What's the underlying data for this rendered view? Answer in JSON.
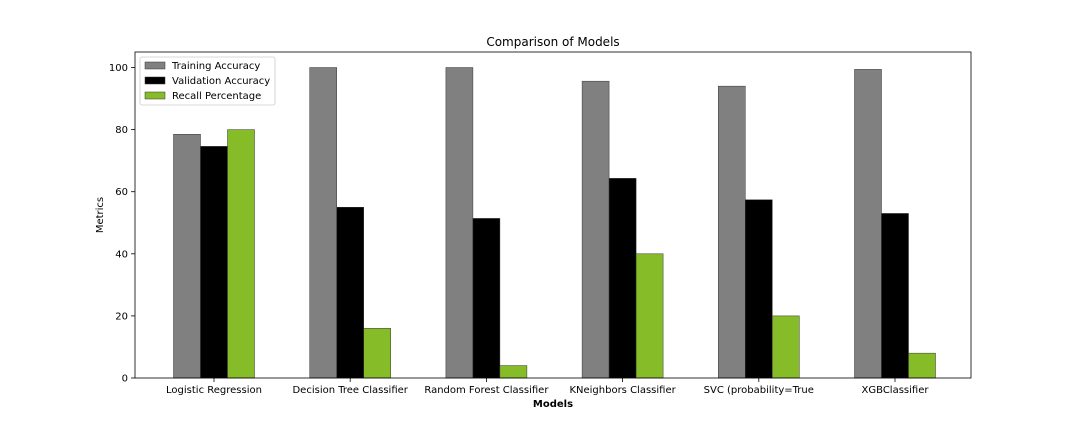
{
  "chart_data": {
    "type": "bar",
    "title": "Comparison of Models",
    "xlabel": "Models",
    "ylabel": "Metrics",
    "ylim": [
      0,
      105
    ],
    "yticks": [
      0,
      20,
      40,
      60,
      80,
      100
    ],
    "categories": [
      "Logistic Regression",
      "Decision Tree Classifier",
      "Random Forest Classifier",
      "KNeighbors Classifier",
      "SVC (probability=True",
      "XGBClassifier"
    ],
    "series": [
      {
        "name": "Training Accuracy",
        "color": "#808080",
        "values": [
          78.5,
          100.0,
          100.0,
          95.6,
          94.0,
          99.4
        ]
      },
      {
        "name": "Validation Accuracy",
        "color": "#000000",
        "values": [
          74.6,
          55.0,
          51.4,
          64.3,
          57.4,
          53.0
        ]
      },
      {
        "name": "Recall Percentage",
        "color": "#87bc29",
        "values": [
          80.0,
          16.0,
          4.0,
          40.0,
          20.0,
          8.0
        ]
      }
    ],
    "grid": false,
    "legend_position": "top-left"
  }
}
